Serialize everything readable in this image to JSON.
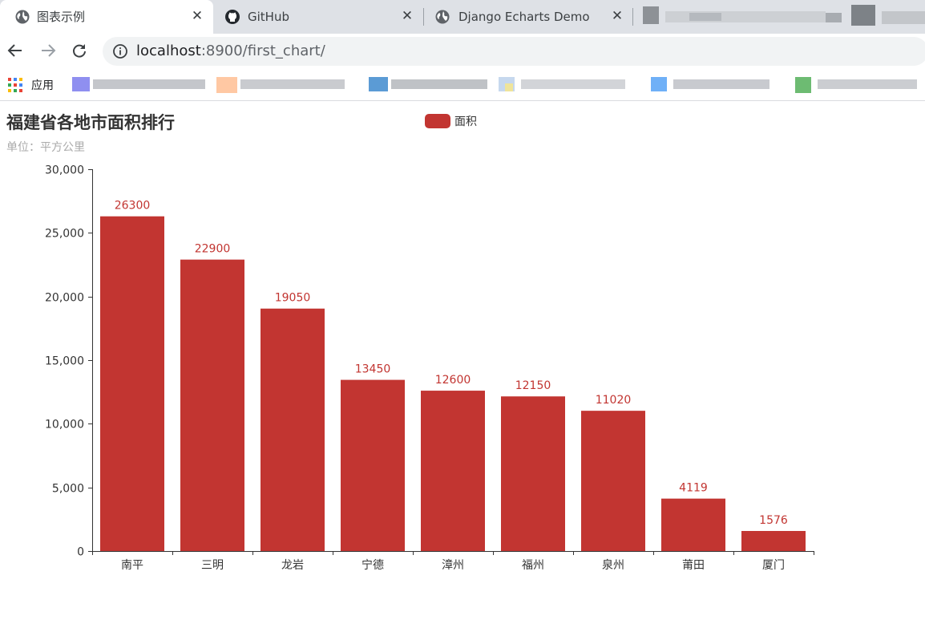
{
  "browser": {
    "tabs": [
      {
        "title": "图表示例",
        "active": true,
        "icon": "globe-icon"
      },
      {
        "title": "GitHub",
        "active": false,
        "icon": "github-icon"
      },
      {
        "title": "Django Echarts Demo",
        "active": false,
        "icon": "globe-icon"
      }
    ],
    "url_host": "localhost",
    "url_rest": ":8900/first_chart/",
    "bookmarks_apps_label": "应用"
  },
  "colors": {
    "bar": "#c23531",
    "axis": "#333333",
    "tabstrip": "#dee1e6"
  },
  "chart_data": {
    "type": "bar",
    "title": "福建省各地市面积排行",
    "subtitle": "单位：平方公里",
    "legend": [
      "面积"
    ],
    "legend_position": "top-center",
    "categories": [
      "南平",
      "三明",
      "龙岩",
      "宁德",
      "漳州",
      "福州",
      "泉州",
      "莆田",
      "厦门"
    ],
    "series": [
      {
        "name": "面积",
        "values": [
          26300,
          22900,
          19050,
          13450,
          12600,
          12150,
          11020,
          4119,
          1576
        ]
      }
    ],
    "ylim": [
      0,
      30000
    ],
    "yticks": [
      "0",
      "5,000",
      "10,000",
      "15,000",
      "20,000",
      "25,000",
      "30,000"
    ],
    "ytick_values": [
      0,
      5000,
      10000,
      15000,
      20000,
      25000,
      30000
    ],
    "grid": false,
    "data_labels": true
  }
}
